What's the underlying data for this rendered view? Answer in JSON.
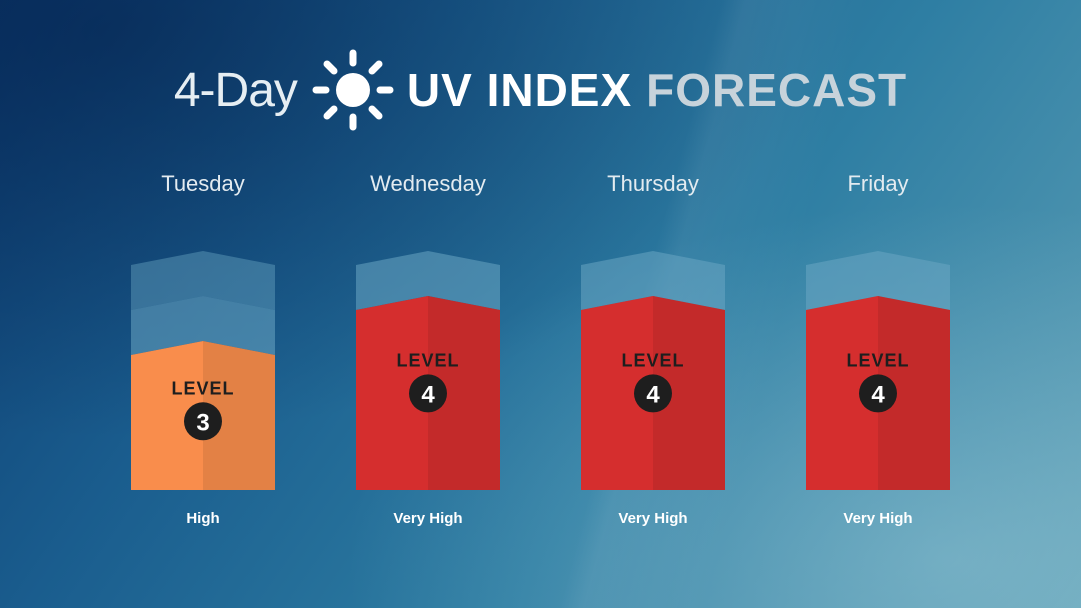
{
  "title": {
    "days": "4-Day",
    "uv": "UV INDEX",
    "forecast": "FORECAST",
    "icon": "sun-icon"
  },
  "chart_data": {
    "type": "bar",
    "categories": [
      "Tuesday",
      "Wednesday",
      "Thursday",
      "Friday"
    ],
    "values": [
      3,
      4,
      4,
      4
    ],
    "ylim": [
      0,
      5
    ],
    "level_word": "LEVEL",
    "risk_labels": [
      "High",
      "Very High",
      "Very High",
      "Very High"
    ],
    "colors": {
      "level_3": "#ef8849",
      "level_4": "#cd2c2c",
      "ghost": "#6aa6c3",
      "badge": "#1e1e1e"
    }
  }
}
